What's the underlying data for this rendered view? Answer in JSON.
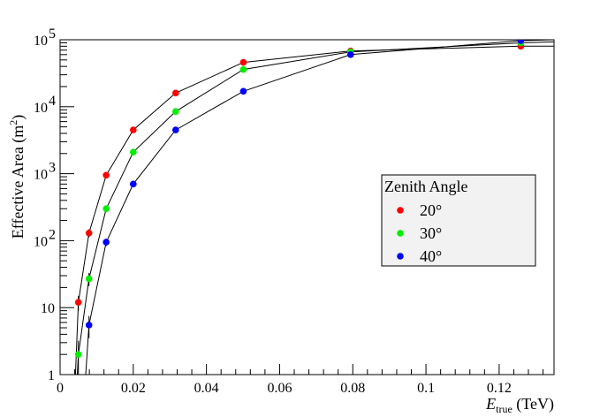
{
  "chart_data": {
    "type": "scatter",
    "title": "",
    "xlabel_main": "E",
    "xlabel_sub": "true",
    "xlabel_unit": " (TeV)",
    "ylabel_main": "Effective Area (m",
    "ylabel_sup": "2",
    "ylabel_end": ")",
    "xlim": [
      0,
      0.135
    ],
    "ylim": [
      1,
      100000
    ],
    "y_scale": "log",
    "x_ticks": [
      0,
      0.02,
      0.04,
      0.06,
      0.08,
      0.1,
      0.12
    ],
    "x_tick_labels": [
      "0",
      "0.02",
      "0.04",
      "0.06",
      "0.08",
      "0.1",
      "0.12"
    ],
    "y_ticks": [
      {
        "value": 1,
        "label": "1",
        "sup": ""
      },
      {
        "value": 10,
        "label": "10",
        "sup": ""
      },
      {
        "value": 100,
        "label": "10",
        "sup": "2"
      },
      {
        "value": 1000,
        "label": "10",
        "sup": "3"
      },
      {
        "value": 10000,
        "label": "10",
        "sup": "4"
      },
      {
        "value": 100000,
        "label": "10",
        "sup": "5"
      }
    ],
    "grid": false,
    "legend": {
      "title": "Zenith Angle",
      "placement": "right-middle"
    },
    "series": [
      {
        "name": "20°",
        "color": "#ff0000",
        "x": [
          0.005,
          0.0079,
          0.0126,
          0.02,
          0.0316,
          0.0501,
          0.0794,
          0.1259
        ],
        "y": [
          12,
          130,
          950,
          4500,
          16000,
          46000,
          68000,
          80000
        ],
        "err": [
          3,
          18,
          60,
          200,
          400,
          900,
          1200,
          1500
        ],
        "curve_x": [
          0.0042,
          0.005,
          0.0079,
          0.0126,
          0.02,
          0.0316,
          0.0501,
          0.0794,
          0.1259,
          0.135
        ],
        "curve_y": [
          1,
          12,
          130,
          950,
          4500,
          16000,
          46000,
          68000,
          80000,
          80000
        ]
      },
      {
        "name": "30°",
        "color": "#00ee00",
        "x": [
          0.005,
          0.0079,
          0.0126,
          0.02,
          0.0316,
          0.0501,
          0.0794,
          0.1259
        ],
        "y": [
          2,
          27,
          300,
          2100,
          8500,
          36000,
          66000,
          90000
        ],
        "err": [
          1.2,
          6,
          30,
          120,
          300,
          800,
          1200,
          1500
        ],
        "curve_x": [
          0.0047,
          0.005,
          0.0079,
          0.0126,
          0.02,
          0.0316,
          0.0501,
          0.0794,
          0.1259,
          0.135
        ],
        "curve_y": [
          1,
          2,
          27,
          300,
          2100,
          8500,
          36000,
          66000,
          90000,
          93000
        ]
      },
      {
        "name": "40°",
        "color": "#0000ff",
        "x": [
          0.0079,
          0.0126,
          0.02,
          0.0316,
          0.0501,
          0.0794,
          0.1259
        ],
        "y": [
          5.5,
          95,
          700,
          4500,
          17000,
          60000,
          97000
        ],
        "err": [
          2,
          12,
          50,
          200,
          500,
          1000,
          1500
        ],
        "curve_x": [
          0.007,
          0.0079,
          0.0126,
          0.02,
          0.0316,
          0.0501,
          0.0794,
          0.1259,
          0.135
        ],
        "curve_y": [
          1,
          5.5,
          95,
          700,
          4500,
          17000,
          60000,
          97000,
          100000
        ]
      }
    ]
  }
}
